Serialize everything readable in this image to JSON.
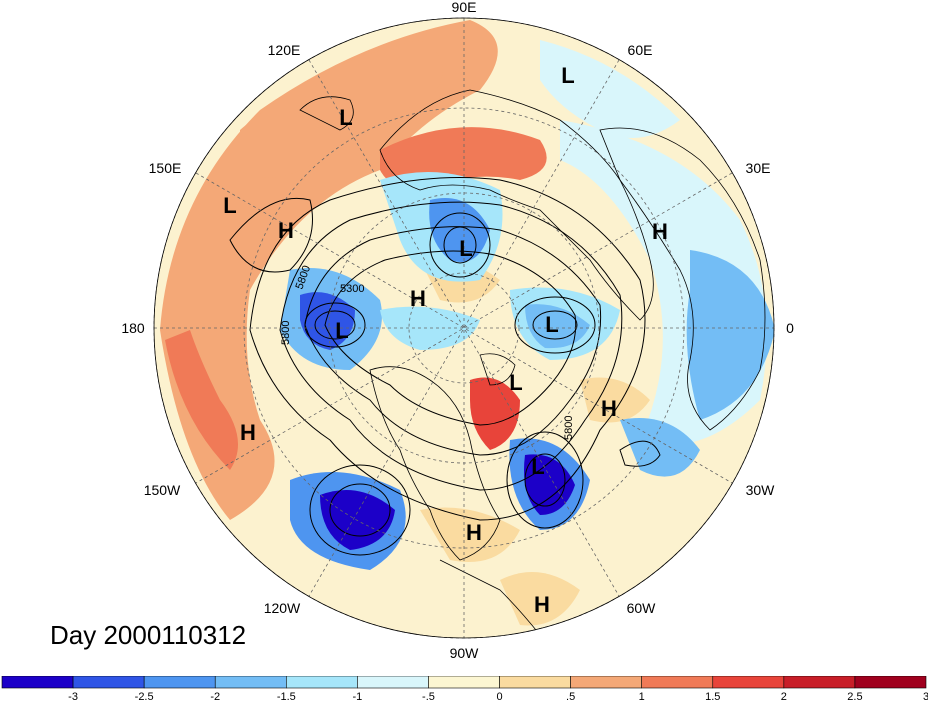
{
  "title": "Day 2000110312",
  "longitude_labels": [
    {
      "text": "90E",
      "id": "lon-90e"
    },
    {
      "text": "120E",
      "id": "lon-120e"
    },
    {
      "text": "60E",
      "id": "lon-60e"
    },
    {
      "text": "150E",
      "id": "lon-150e"
    },
    {
      "text": "30E",
      "id": "lon-30e"
    },
    {
      "text": "180",
      "id": "lon-180"
    },
    {
      "text": "0",
      "id": "lon-0"
    },
    {
      "text": "150W",
      "id": "lon-150w"
    },
    {
      "text": "30W",
      "id": "lon-30w"
    },
    {
      "text": "120W",
      "id": "lon-120w"
    },
    {
      "text": "60W",
      "id": "lon-60w"
    },
    {
      "text": "90W",
      "id": "lon-90w"
    }
  ],
  "pressure_systems": [
    "L",
    "L",
    "L",
    "H",
    "L",
    "H",
    "L",
    "L",
    "H",
    "H",
    "L",
    "H",
    "L",
    "H",
    "H"
  ],
  "contour_labels": [
    "5800",
    "5300",
    "5800",
    "5800"
  ],
  "colorbar": {
    "colors": [
      "#1c00c8",
      "#2f55e6",
      "#4e95f0",
      "#73bdf5",
      "#a6e6fa",
      "#d9f6fb",
      "#fcf6d2",
      "#fadba0",
      "#f4a877",
      "#f07a57",
      "#e8443a",
      "#c81e28",
      "#a0001e"
    ],
    "ticks": [
      "-3",
      "-2.5",
      "-2",
      "-1.5",
      "-1",
      "-.5",
      "0",
      ".5",
      "1",
      "1.5",
      "2",
      "2.5",
      "3"
    ]
  }
}
